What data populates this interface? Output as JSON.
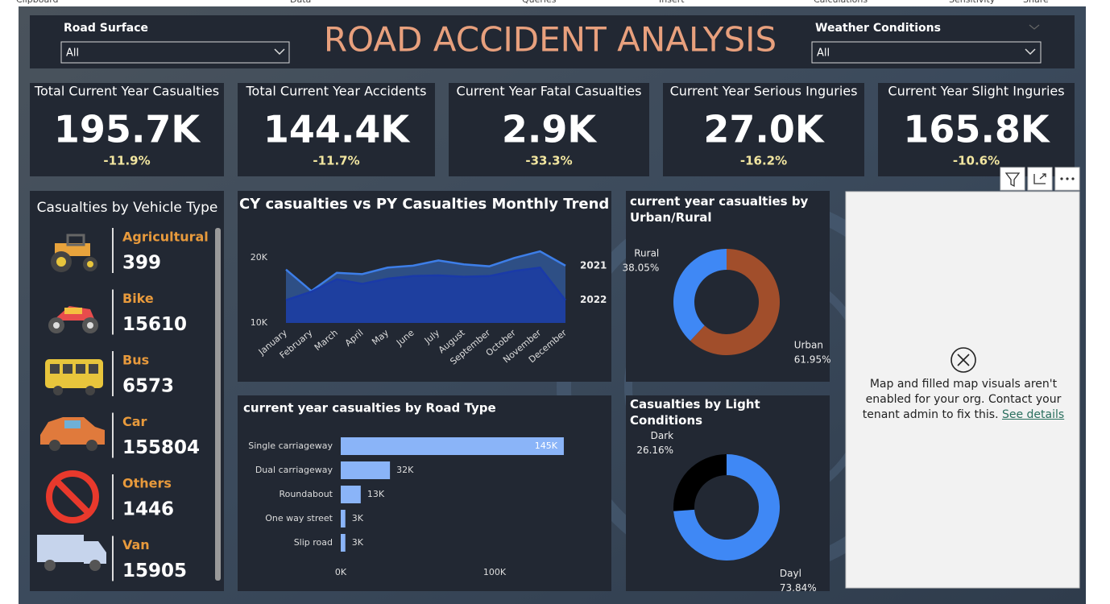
{
  "ribbon": {
    "tabs": [
      "Clipboard",
      "Data",
      "Queries",
      "Insert",
      "Calculations",
      "Sensitivity",
      "Share"
    ]
  },
  "header": {
    "title": "ROAD ACCIDENT ANALYSIS",
    "slicers": [
      {
        "label": "Road Surface",
        "value": "All"
      },
      {
        "label": "Weather Conditions",
        "value": "All"
      }
    ]
  },
  "kpis": [
    {
      "title": "Total Current Year Casualties",
      "value": "195.7K",
      "change": "-11.9%"
    },
    {
      "title": "Total Current Year Accidents",
      "value": "144.4K",
      "change": "-11.7%"
    },
    {
      "title": "Current Year Fatal Casualties",
      "value": "2.9K",
      "change": "-33.3%"
    },
    {
      "title": "Current Year Serious Inguries",
      "value": "27.0K",
      "change": "-16.2%"
    },
    {
      "title": "Current Year Slight Inguries",
      "value": "165.8K",
      "change": "-10.6%"
    }
  ],
  "vehicle_panel": {
    "title": "Casualties by Vehicle Type",
    "items": [
      {
        "name": "Agricultural",
        "value": 399
      },
      {
        "name": "Bike",
        "value": 15610
      },
      {
        "name": "Bus",
        "value": 6573
      },
      {
        "name": "Car",
        "value": 155804
      },
      {
        "name": "Others",
        "value": 1446
      },
      {
        "name": "Van",
        "value": 15905
      }
    ]
  },
  "chart_data": [
    {
      "type": "area",
      "title": "CY casualties vs PY Casualties Monthly Trend",
      "categories": [
        "January",
        "February",
        "March",
        "April",
        "May",
        "June",
        "July",
        "August",
        "September",
        "October",
        "November",
        "December"
      ],
      "series": [
        {
          "name": "2021",
          "color": "#3d7ee8",
          "values": [
            18200,
            14900,
            17700,
            17500,
            18500,
            18800,
            19600,
            19000,
            18700,
            20000,
            21000,
            18800
          ]
        },
        {
          "name": "2022",
          "color": "#1a3aa8",
          "values": [
            13500,
            14800,
            16700,
            16000,
            16800,
            17200,
            17300,
            17100,
            17200,
            18000,
            18500,
            13500
          ]
        }
      ],
      "ylim": [
        10000,
        22000
      ],
      "yticks": [
        {
          "value": 10000,
          "label": "10K"
        },
        {
          "value": 20000,
          "label": "20K"
        }
      ]
    },
    {
      "type": "hbar",
      "title": "current year casualties by Road Type",
      "categories": [
        "Single carriageway",
        "Dual carriageway",
        "Roundabout",
        "One way street",
        "Slip road"
      ],
      "values": [
        145000,
        32000,
        13000,
        3000,
        3000
      ],
      "value_labels": [
        "145K",
        "32K",
        "13K",
        "3K",
        "3K"
      ],
      "color": "#8ab4f8",
      "xlim": [
        0,
        150000
      ],
      "xticks": [
        {
          "value": 0,
          "label": "0K"
        },
        {
          "value": 100000,
          "label": "100K"
        }
      ]
    },
    {
      "type": "donut",
      "title": "current year casualties by Urban/Rural",
      "categories": [
        "Rural",
        "Urban"
      ],
      "values": [
        38.05,
        61.95
      ],
      "value_labels": [
        "38.05%",
        "61.95%"
      ],
      "colors": [
        "#3f88f5",
        "#a14e2b"
      ]
    },
    {
      "type": "donut",
      "title": "Casualties by Light Conditions",
      "categories": [
        "Dark",
        "Dayl"
      ],
      "values": [
        26.16,
        73.84
      ],
      "value_labels": [
        "26.16%",
        "73.84%"
      ],
      "colors": [
        "#000000",
        "#3f88f5"
      ]
    }
  ],
  "map_panel": {
    "message": "Map and filled map visuals aren't enabled for your org. Contact your tenant admin to fix this.",
    "link": "See details"
  }
}
